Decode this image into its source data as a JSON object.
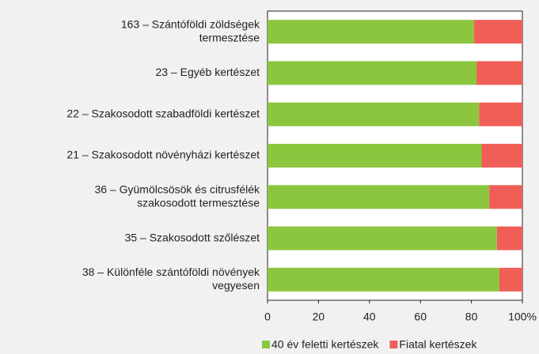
{
  "chart_data": {
    "type": "stacked-barh",
    "categories": [
      [
        "163 – Szántóföldi zöldségek",
        "termesztése"
      ],
      [
        "23 – Egyéb kertészet"
      ],
      [
        "22 – Szakosodott szabadföldi kertészet"
      ],
      [
        "21 – Szakosodott növényházi kertészet"
      ],
      [
        "36 – Gyümölcsösök és citrusfélék",
        "szakosodott termesztése"
      ],
      [
        "35 – Szakosodott szőlészet"
      ],
      [
        "38 – Különféle szántóföldi növények",
        "vegyesen"
      ]
    ],
    "series": [
      {
        "name": "40 év feletti kertészek",
        "color": "#8cc63e",
        "values": [
          81,
          82,
          83,
          84,
          87,
          90,
          91
        ]
      },
      {
        "name": "Fiatal kertészek",
        "color": "#ef5f58",
        "values": [
          19,
          18,
          17,
          16,
          13,
          10,
          9
        ]
      }
    ],
    "xlim": [
      0,
      100
    ],
    "xticks": [
      0,
      20,
      40,
      60,
      80,
      {
        "value": 100,
        "label": "100%"
      }
    ],
    "grid": false,
    "legend": "bottom"
  }
}
